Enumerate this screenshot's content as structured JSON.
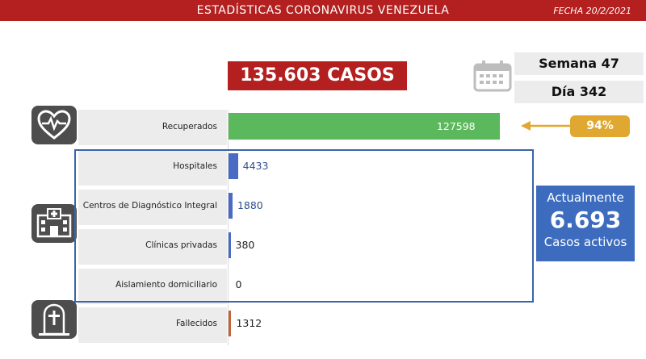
{
  "header": {
    "title": "ESTADÍSTICAS CORONAVIRUS VENEZUELA",
    "date": "FECHA 20/2/2021"
  },
  "total": {
    "label": "135.603 CASOS"
  },
  "calendar": {
    "week": "Semana 47",
    "day": "Día 342",
    "icon": "calendar-icon"
  },
  "icons": {
    "recovered": "heart-pulse-icon",
    "hospital": "hospital-building-icon",
    "deceased": "tombstone-cross-icon"
  },
  "recovered_pct": "94%",
  "active": {
    "title": "Actualmente",
    "value": "6.693",
    "subtitle": "Casos activos"
  },
  "colors": {
    "header": "#b3201f",
    "recovered": "#5cb85c",
    "hospital_bars": "#4a6bc4",
    "deceased": "#c0643a",
    "active_box": "#3d6cbf",
    "badge": "#e0a830",
    "frame": "#3b64a8"
  },
  "chart_data": {
    "type": "bar",
    "orientation": "horizontal",
    "categories": [
      "Recuperados",
      "Hospitales",
      "Centros de Diagnóstico Integral",
      "Clínicas privadas",
      "Aislamiento domiciliario",
      "Fallecidos"
    ],
    "values": [
      127598,
      4433,
      1880,
      380,
      0,
      1312
    ],
    "labels": [
      "127598",
      "4433",
      "1880",
      "380",
      "0",
      "1312"
    ],
    "xlim": [
      0,
      135603
    ],
    "grid": false,
    "legend": "none"
  }
}
